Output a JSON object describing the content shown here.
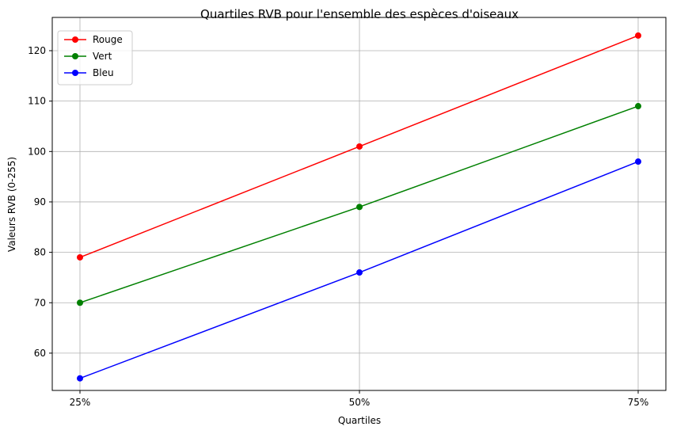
{
  "chart_data": {
    "type": "line",
    "title": "Quartiles RVB pour l'ensemble des espèces d'oiseaux",
    "xlabel": "Quartiles",
    "ylabel": "Valeurs RVB (0-255)",
    "categories": [
      "25%",
      "50%",
      "75%"
    ],
    "series": [
      {
        "name": "Rouge",
        "color": "#ff0000",
        "values": [
          79,
          101,
          123
        ]
      },
      {
        "name": "Vert",
        "color": "#008000",
        "values": [
          70,
          89,
          109
        ]
      },
      {
        "name": "Bleu",
        "color": "#0000ff",
        "values": [
          55,
          76,
          98
        ]
      }
    ],
    "ylim": [
      52.6,
      126.6
    ],
    "yticks": [
      60,
      70,
      80,
      90,
      100,
      110,
      120
    ],
    "grid": true,
    "legend_position": "top-left"
  }
}
